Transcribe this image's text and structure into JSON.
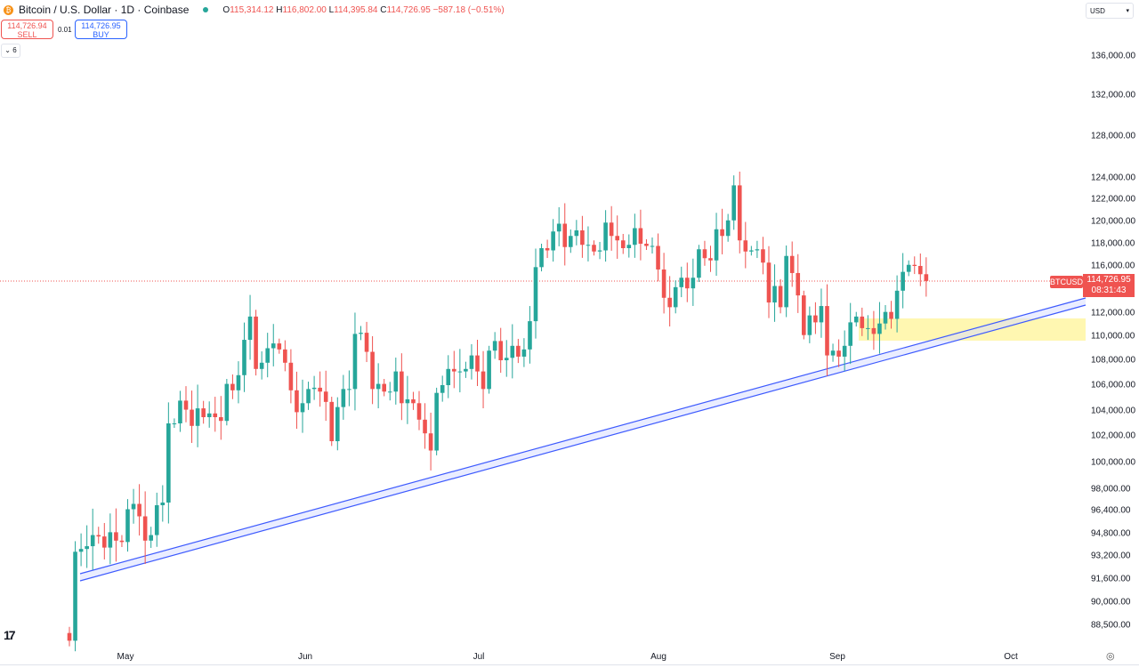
{
  "header": {
    "title": "Bitcoin / U.S. Dollar · 1D · Coinbase",
    "logo": "bitcoin-logo",
    "o_label": "O",
    "o": "115,314.12",
    "h_label": "H",
    "h": "116,802.00",
    "l_label": "L",
    "l": "114,395.84",
    "c_label": "C",
    "c": "114,726.95",
    "change": "−587.18 (−0.51%)"
  },
  "trade": {
    "sell_price": "114,726.94",
    "sell_label": "SELL",
    "spread": "0.01",
    "buy_price": "114,726.95",
    "buy_label": "BUY",
    "collapse": "6"
  },
  "currency": "USD",
  "symbol_label": "BTCUSD",
  "last_price": "114,726.95",
  "countdown": "08:31:43",
  "colors": {
    "up": "#26a69a",
    "down": "#ef5350",
    "trendline": "#3d5afe",
    "zone": "#fff59d"
  },
  "chart_data": {
    "type": "candlestick",
    "y_ticks": [
      136000,
      132000,
      128000,
      124000,
      122000,
      120000,
      118000,
      116000,
      112000,
      110000,
      108000,
      106000,
      104000,
      102000,
      100000,
      98000,
      96400,
      94800,
      93200,
      91600,
      90000,
      88500
    ],
    "y_tick_labels": [
      "136,000.00",
      "132,000.00",
      "128,000.00",
      "124,000.00",
      "122,000.00",
      "120,000.00",
      "118,000.00",
      "116,000.00",
      "112,000.00",
      "110,000.00",
      "108,000.00",
      "106,000.00",
      "104,000.00",
      "102,000.00",
      "100,000.00",
      "98,000.00",
      "96,400.00",
      "94,800.00",
      "93,200.00",
      "91,600.00",
      "90,000.00",
      "88,500.00"
    ],
    "x_labels": [
      "May",
      "Jun",
      "Jul",
      "Aug",
      "Sep",
      "Oct"
    ],
    "start_date": "Apr 21",
    "first_open": 88000,
    "closes": [
      87500,
      93500,
      93700,
      93900,
      94700,
      94600,
      93800,
      94900,
      94300,
      94200,
      96500,
      96900,
      96000,
      94300,
      94700,
      96800,
      97000,
      103000,
      103000,
      104800,
      104100,
      102800,
      104200,
      103500,
      103800,
      103500,
      103200,
      106100,
      105600,
      106800,
      109700,
      111700,
      107300,
      107800,
      109000,
      109400,
      108900,
      107800,
      105600,
      103900,
      104600,
      105700,
      105800,
      105500,
      104700,
      101600,
      104300,
      105700,
      105700,
      110200,
      110300,
      108700,
      105700,
      106100,
      105500,
      105500,
      107100,
      104600,
      104900,
      104600,
      103300,
      102200,
      100900,
      105400,
      106000,
      107300,
      107100,
      107100,
      107300,
      108400,
      107100,
      105700,
      108800,
      109600,
      108000,
      108200,
      109200,
      108300,
      108900,
      111300,
      115900,
      117600,
      117400,
      119100,
      119800,
      117700,
      118700,
      119200,
      117900,
      117900,
      117300,
      117400,
      119900,
      118700,
      118300,
      117600,
      117900,
      119400,
      118000,
      117800,
      117800,
      115700,
      113300,
      112500,
      114200,
      115000,
      114100,
      115000,
      117500,
      116700,
      116500,
      119300,
      118700,
      120100,
      123300,
      118300,
      117300,
      117400,
      117500,
      116300,
      112900,
      114300,
      112500,
      116900,
      115400,
      113500,
      110100,
      111800,
      111200,
      112600,
      108400,
      108800,
      108300,
      109200,
      111200,
      111700,
      110700,
      110700,
      110200,
      111100,
      112100,
      111500,
      113900,
      115500,
      116100,
      116000,
      115300,
      114727
    ]
  }
}
